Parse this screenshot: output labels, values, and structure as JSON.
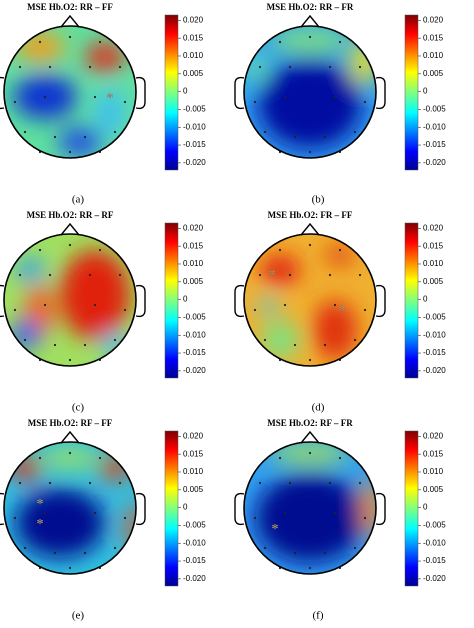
{
  "panels": [
    {
      "title": "MSE Hb.O2: RR – FF",
      "label": "(a)"
    },
    {
      "title": "MSE Hb.O2: RR – FR",
      "label": "(b)"
    },
    {
      "title": "MSE Hb.O2: RR – RF",
      "label": "(c)"
    },
    {
      "title": "MSE Hb.O2: FR – FF",
      "label": "(d)"
    },
    {
      "title": "MSE Hb.O2: RF – FF",
      "label": "(e)"
    },
    {
      "title": "MSE Hb.O2: RF – FR",
      "label": "(f)"
    }
  ],
  "colorbar": {
    "lim": [
      -0.022,
      0.0215
    ],
    "ticks": [
      {
        "value": 0.02,
        "label": "0.020"
      },
      {
        "value": 0.015,
        "label": "0.015"
      },
      {
        "value": 0.01,
        "label": "0.010"
      },
      {
        "value": 0.005,
        "label": "0.005"
      },
      0,
      {
        "value": -0.005,
        "label": "-0.005"
      },
      {
        "value": -0.01,
        "label": "-0.010"
      },
      {
        "value": -0.015,
        "label": "-0.015"
      },
      {
        "value": -0.02,
        "label": "-0.020"
      }
    ]
  }
}
